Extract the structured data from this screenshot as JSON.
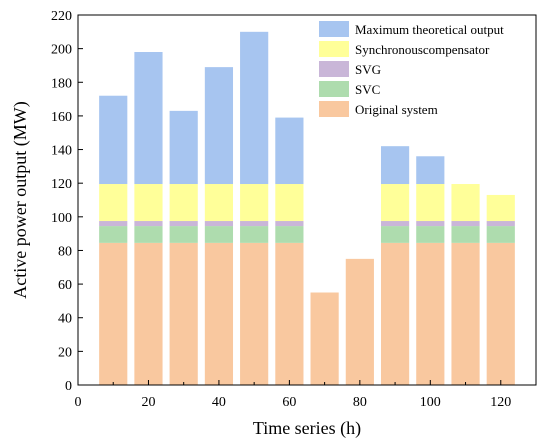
{
  "chart_data": {
    "type": "bar",
    "stacked": true,
    "xlabel": "Time series (h)",
    "ylabel": "Active power output (MW)",
    "xlim": [
      0,
      130
    ],
    "ylim": [
      0,
      220
    ],
    "xticks": [
      0,
      20,
      40,
      60,
      80,
      100,
      120
    ],
    "yticks": [
      0,
      20,
      40,
      60,
      80,
      100,
      120,
      140,
      160,
      180,
      200,
      220
    ],
    "bar_width": 8,
    "grid": false,
    "legend_position": "top-right",
    "x": [
      10,
      20,
      30,
      40,
      50,
      60,
      70,
      80,
      90,
      100,
      110,
      120
    ],
    "series": [
      {
        "name": "Original system",
        "color": "#F9C89F",
        "values": [
          84.5,
          84.5,
          84.5,
          84.5,
          84.5,
          84.5,
          55,
          75,
          84.5,
          84.5,
          84.5,
          84.5
        ]
      },
      {
        "name": "SVC",
        "color": "#AEDCAE",
        "values": [
          10,
          10,
          10,
          10,
          10,
          10,
          0,
          0,
          10,
          10,
          10,
          10
        ]
      },
      {
        "name": "SVG",
        "color": "#C9B6D8",
        "values": [
          3,
          3,
          3,
          3,
          3,
          3,
          0,
          0,
          3,
          3,
          3,
          3
        ]
      },
      {
        "name": "Synchronouscompensator",
        "color": "#FFFF99",
        "values": [
          22,
          22,
          22,
          22,
          22,
          22,
          0,
          0,
          22,
          22,
          22,
          15.5
        ]
      },
      {
        "name": "Maximum theoretical output",
        "color": "#A7C5F0",
        "values": [
          52.5,
          78.5,
          43.5,
          69.5,
          90.5,
          39.5,
          0,
          0,
          22.5,
          16.5,
          0,
          0
        ]
      }
    ],
    "legend_order": [
      "Maximum theoretical output",
      "Synchronouscompensator",
      "SVG",
      "SVC",
      "Original system"
    ]
  }
}
